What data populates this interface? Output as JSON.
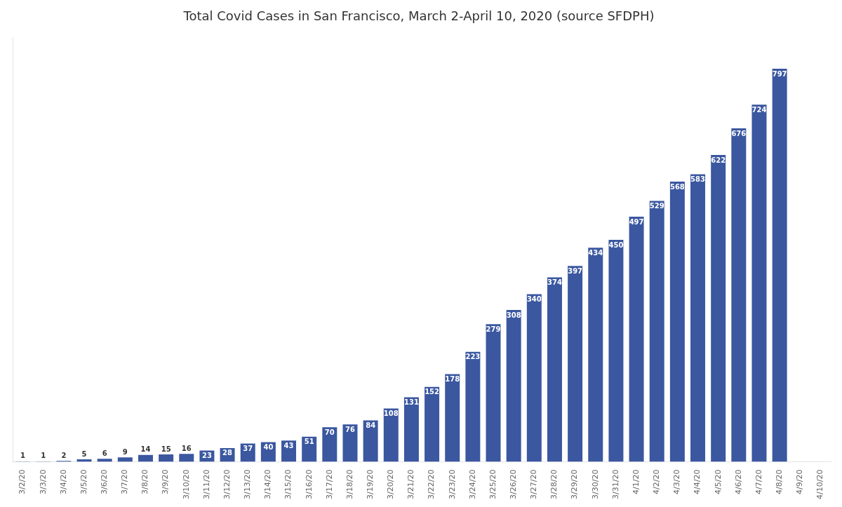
{
  "chart_data": {
    "type": "bar",
    "title": "Total Covid Cases in San Francisco, March 2-April 10, 2020 (source SFDPH)",
    "categories": [
      "3/2/20",
      "3/3/20",
      "3/4/20",
      "3/5/20",
      "3/6/20",
      "3/7/20",
      "3/8/20",
      "3/9/20",
      "3/10/20",
      "3/11/20",
      "3/12/20",
      "3/13/20",
      "3/14/20",
      "3/15/20",
      "3/16/20",
      "3/17/20",
      "3/18/20",
      "3/19/20",
      "3/20/20",
      "3/21/20",
      "3/22/20",
      "3/23/20",
      "3/24/20",
      "3/25/20",
      "3/26/20",
      "3/27/20",
      "3/28/20",
      "3/29/20",
      "3/30/20",
      "3/31/20",
      "4/1/20",
      "4/2/20",
      "4/3/20",
      "4/4/20",
      "4/5/20",
      "4/6/20",
      "4/7/20",
      "4/8/20",
      "4/9/20",
      "4/10/20"
    ],
    "values": [
      1,
      1,
      2,
      5,
      6,
      9,
      14,
      15,
      16,
      23,
      28,
      37,
      40,
      43,
      51,
      70,
      76,
      84,
      108,
      131,
      152,
      178,
      223,
      279,
      308,
      340,
      374,
      397,
      434,
      450,
      497,
      529,
      568,
      583,
      622,
      676,
      724,
      797,
      0,
      0
    ],
    "color": "#3a57a0",
    "ylim": [
      0,
      860
    ],
    "grid": false,
    "data_labels": true,
    "tick_labels": "x"
  }
}
